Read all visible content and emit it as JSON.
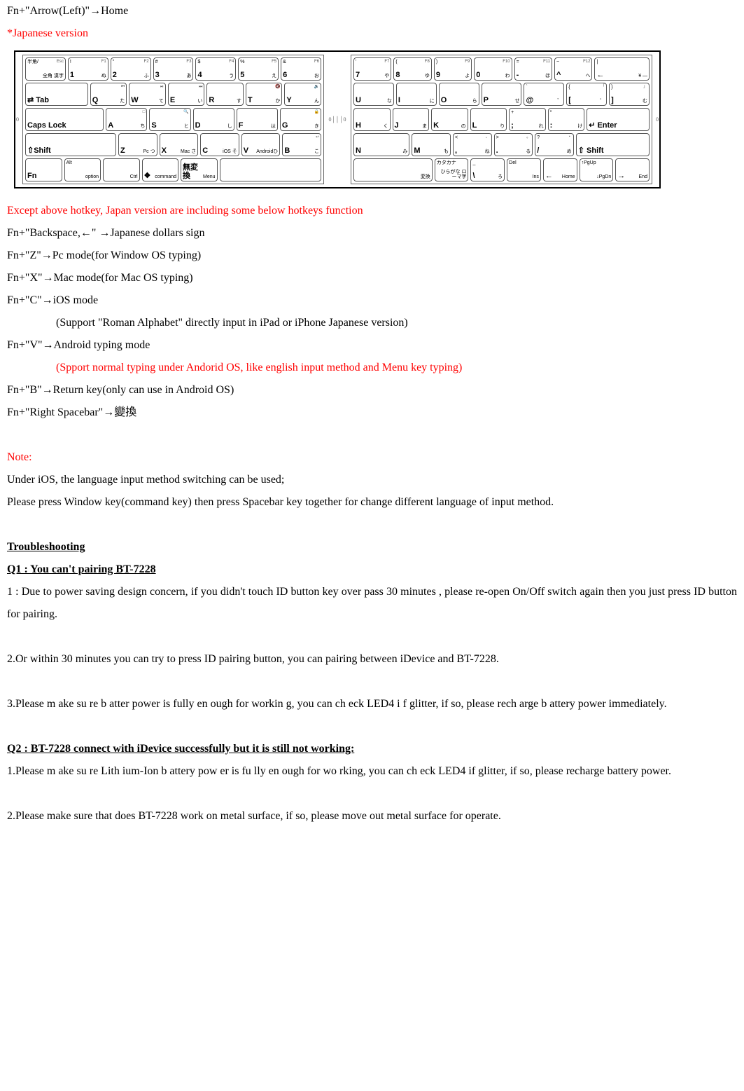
{
  "line1": {
    "pre": "Fn+\"Arrow(Left)\"",
    "arrow": "→",
    "post": "Home"
  },
  "jp_ver": "*Japanese version",
  "kbd": {
    "left": [
      [
        {
          "tl": "半角/",
          "c": "",
          "tr": "Esc",
          "br": "全角 漢字"
        },
        {
          "tl": "!",
          "c": "1",
          "tr": "F1",
          "br": "ぬ"
        },
        {
          "tl": "\"",
          "c": "2",
          "tr": "F2",
          "br": "ふ"
        },
        {
          "tl": "#",
          "c": "3",
          "tr": "F3",
          "br": "あ"
        },
        {
          "tl": "$",
          "c": "4",
          "tr": "F4",
          "br": "う"
        },
        {
          "tl": "%",
          "c": "5",
          "tr": "F5",
          "br": "え"
        },
        {
          "tl": "&",
          "c": "6",
          "tr": "F6",
          "br": "お"
        }
      ],
      [
        {
          "tl": "",
          "c": "⇄ Tab",
          "tr": "",
          "br": "",
          "w": "wide18"
        },
        {
          "tl": "",
          "c": "Q",
          "tr": "⏮",
          "br": "た"
        },
        {
          "tl": "",
          "c": "W",
          "tr": "⏯",
          "br": "て"
        },
        {
          "tl": "",
          "c": "E",
          "tr": "⏭",
          "br": "い"
        },
        {
          "tl": "",
          "c": "R",
          "tr": "",
          "br": "す"
        },
        {
          "tl": "",
          "c": "T",
          "tr": "🔇",
          "br": "か"
        },
        {
          "tl": "",
          "c": "Y",
          "tr": "🔉",
          "br": "ん"
        }
      ],
      [
        {
          "tl": "",
          "c": "Caps Lock",
          "tr": "",
          "br": "",
          "w": "wide2"
        },
        {
          "tl": "",
          "c": "A",
          "tr": "□",
          "br": "ち"
        },
        {
          "tl": "",
          "c": "S",
          "tr": "🔍",
          "br": "と"
        },
        {
          "tl": "",
          "c": "D",
          "tr": "",
          "br": "し"
        },
        {
          "tl": "",
          "c": "F",
          "tr": "",
          "br": "は"
        },
        {
          "tl": "",
          "c": "G",
          "tr": "🔒",
          "br": "き"
        }
      ],
      [
        {
          "tl": "",
          "c": "⇧Shift",
          "tr": "",
          "br": "",
          "w": "wide25"
        },
        {
          "tl": "",
          "c": "Z",
          "tr": "",
          "br": "Pc  つ"
        },
        {
          "tl": "",
          "c": "X",
          "tr": "",
          "br": "Mac さ"
        },
        {
          "tl": "",
          "c": "C",
          "tr": "",
          "br": "iOS そ"
        },
        {
          "tl": "",
          "c": "V",
          "tr": "",
          "br": "Androidひ"
        },
        {
          "tl": "",
          "c": "B",
          "tr": "↩",
          "br": "こ"
        }
      ],
      [
        {
          "tl": "",
          "c": "Fn",
          "tr": "",
          "br": ""
        },
        {
          "tl": "Alt",
          "c": "",
          "tr": "",
          "br": "option"
        },
        {
          "tl": "",
          "c": "",
          "tr": "",
          "br": "Ctrl"
        },
        {
          "tl": "",
          "c": "❖",
          "tr": "",
          "br": "command"
        },
        {
          "tl": "",
          "c": "無変換",
          "tr": "",
          "br": "Menu"
        },
        {
          "tl": "",
          "c": "",
          "tr": "",
          "br": "",
          "w": "wide3"
        }
      ]
    ],
    "right": [
      [
        {
          "tl": "'",
          "c": "7",
          "tr": "F7",
          "br": "や"
        },
        {
          "tl": "(",
          "c": "8",
          "tr": "F8",
          "br": "ゆ"
        },
        {
          "tl": ")",
          "c": "9",
          "tr": "F9",
          "br": "よ"
        },
        {
          "tl": "",
          "c": "0",
          "tr": "F10",
          "br": "わ"
        },
        {
          "tl": "=",
          "c": "-",
          "tr": "F11",
          "br": "ほ"
        },
        {
          "tl": "~",
          "c": "^",
          "tr": "F12",
          "br": "へ"
        },
        {
          "tl": "|",
          "c": "←",
          "tr": "",
          "br": "¥ —",
          "w": "wide15"
        }
      ],
      [
        {
          "tl": "",
          "c": "U",
          "tr": "",
          "br": "な"
        },
        {
          "tl": "",
          "c": "I",
          "tr": "",
          "br": "に"
        },
        {
          "tl": "",
          "c": "O",
          "tr": "",
          "br": "ら"
        },
        {
          "tl": "",
          "c": "P",
          "tr": "",
          "br": "せ"
        },
        {
          "tl": "`",
          "c": "@",
          "tr": "",
          "br": "゛"
        },
        {
          "tl": "{",
          "c": "[",
          "tr": "「",
          "br": "゜"
        },
        {
          "tl": "}",
          "c": "]",
          "tr": "」",
          "br": "む"
        }
      ],
      [
        {
          "tl": "",
          "c": "H",
          "tr": "",
          "br": "く"
        },
        {
          "tl": "",
          "c": "J",
          "tr": "",
          "br": "ま"
        },
        {
          "tl": "",
          "c": "K",
          "tr": "",
          "br": "の"
        },
        {
          "tl": "",
          "c": "L",
          "tr": "",
          "br": "り"
        },
        {
          "tl": "+",
          "c": ";",
          "tr": "",
          "br": "れ"
        },
        {
          "tl": "*",
          "c": ":",
          "tr": "",
          "br": "け"
        },
        {
          "tl": "",
          "c": "↵ Enter",
          "tr": "",
          "br": "",
          "w": "wide18"
        }
      ],
      [
        {
          "tl": "",
          "c": "N",
          "tr": "",
          "br": "み",
          "w": "wide15"
        },
        {
          "tl": "",
          "c": "M",
          "tr": "",
          "br": "も"
        },
        {
          "tl": "<",
          "c": ",",
          "tr": "、",
          "br": "ね"
        },
        {
          "tl": ">",
          "c": ".",
          "tr": "。",
          "br": "る"
        },
        {
          "tl": "?",
          "c": "/",
          "tr": "・",
          "br": "め"
        },
        {
          "tl": "",
          "c": "⇧ Shift",
          "tr": "",
          "br": "",
          "w": "wide2"
        }
      ],
      [
        {
          "tl": "",
          "c": "",
          "tr": "",
          "br": "変換",
          "w": "wide25"
        },
        {
          "tl": "カタカナ",
          "c": "",
          "tr": "",
          "br": "ひらがな ローマ字"
        },
        {
          "tl": "_",
          "c": "\\",
          "tr": "",
          "br": "ろ"
        },
        {
          "tl": "Del",
          "c": "",
          "tr": "",
          "br": "Ins"
        },
        {
          "tl": "",
          "c": "←",
          "tr": "",
          "br": "Home"
        },
        {
          "tl": "↑PgUp",
          "c": "",
          "tr": "",
          "br": "↓PgDn"
        },
        {
          "tl": "",
          "c": "→",
          "tr": "",
          "br": "End"
        }
      ]
    ]
  },
  "except": "Except above hotkey, Japan version are including some below hotkeys function",
  "l_bksp": {
    "pre": "Fn+\"Backspace,",
    "a1": "←",
    "mid": "\" ",
    "a2": "→",
    "post": "Japanese dollars sign"
  },
  "l_z": {
    "pre": "Fn+\"Z\"",
    "a": "→",
    "post": "Pc mode(for Window OS typing)"
  },
  "l_x": {
    "pre": "Fn+\"X\"",
    "a": "→",
    "post": "Mac mode(for Mac OS typing)"
  },
  "l_c": {
    "pre": "Fn+\"C\"",
    "a": "→",
    "post": "iOS mode"
  },
  "l_c_sub": "(Support \"Roman Alphabet\" directly input in iPad or iPhone Japanese version)",
  "l_v": {
    "pre": "Fn+\"V\"",
    "a": "→",
    "post": "Android typing mode"
  },
  "l_v_sub": "(Spport normal typing under Andorid OS, like english input method and Menu key typing)",
  "l_b": {
    "pre": "Fn+\"B\"",
    "a": "→",
    "post": "Return key(only can use in Android OS)"
  },
  "l_sp": {
    "pre": "Fn+\"Right Spacebar\"",
    "a": "→",
    "post": "變換"
  },
  "note_h": "Note:",
  "note1": "Under iOS, the language input method switching can be used;",
  "note2": "Please press Window key(command key) then press Spacebar key together for change different language of input method.",
  "trouble_h": "Troubleshooting",
  "q1_h": "Q1 : You can't pairing BT-7228  ",
  "q1_1": "1 : Due to power saving design concern, if you didn't touch ID button key over pass 30 minutes , please re-open On/Off switch again then you just press ID button for pairing.",
  "q1_2": "2.Or within 30 minutes you can try to press ID pairing button, you can pairing between iDevice and BT-7228.",
  "q1_3": "3.Please m ake su re b atter  power is  fully en ough for workin g,  you can ch eck LED4  i f glitter, if so,   please rech arge b attery power immediately.",
  "q2_h": "Q2 : BT-7228 connect with iDevice successfully but it is still not working:",
  "q2_1": "1.Please m ake su re Lith ium-Ion b attery pow er is fu  lly en ough  for wo rking, you can ch   eck LED4   if  glitter, if so,    please recharge battery power.",
  "q2_2": "2.Please make sure that does BT-7228 work on metal surface, if so, please move out metal surface for operate."
}
